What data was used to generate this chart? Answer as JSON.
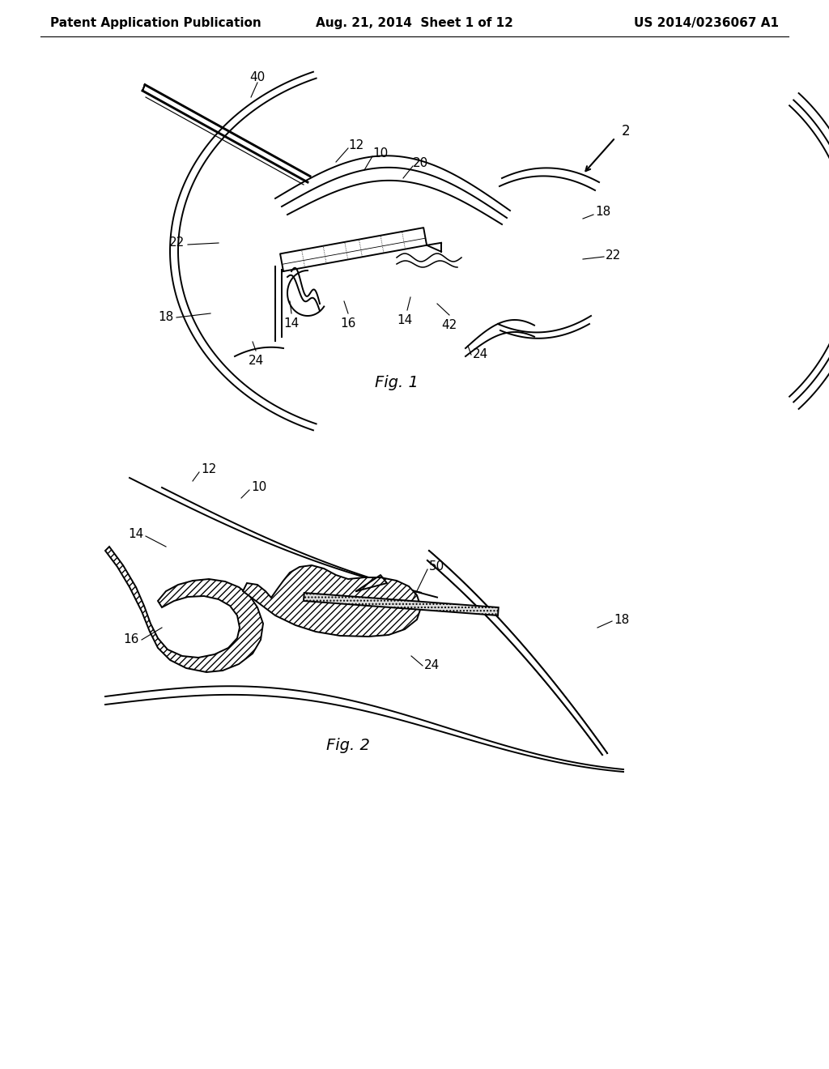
{
  "header_left": "Patent Application Publication",
  "header_center": "Aug. 21, 2014  Sheet 1 of 12",
  "header_right": "US 2014/0236067 A1",
  "fig1_label": "Fig. 1",
  "fig2_label": "Fig. 2",
  "bg_color": "#ffffff",
  "line_color": "#000000",
  "header_fontsize": 11,
  "label_fontsize": 11,
  "fig_label_fontsize": 14
}
